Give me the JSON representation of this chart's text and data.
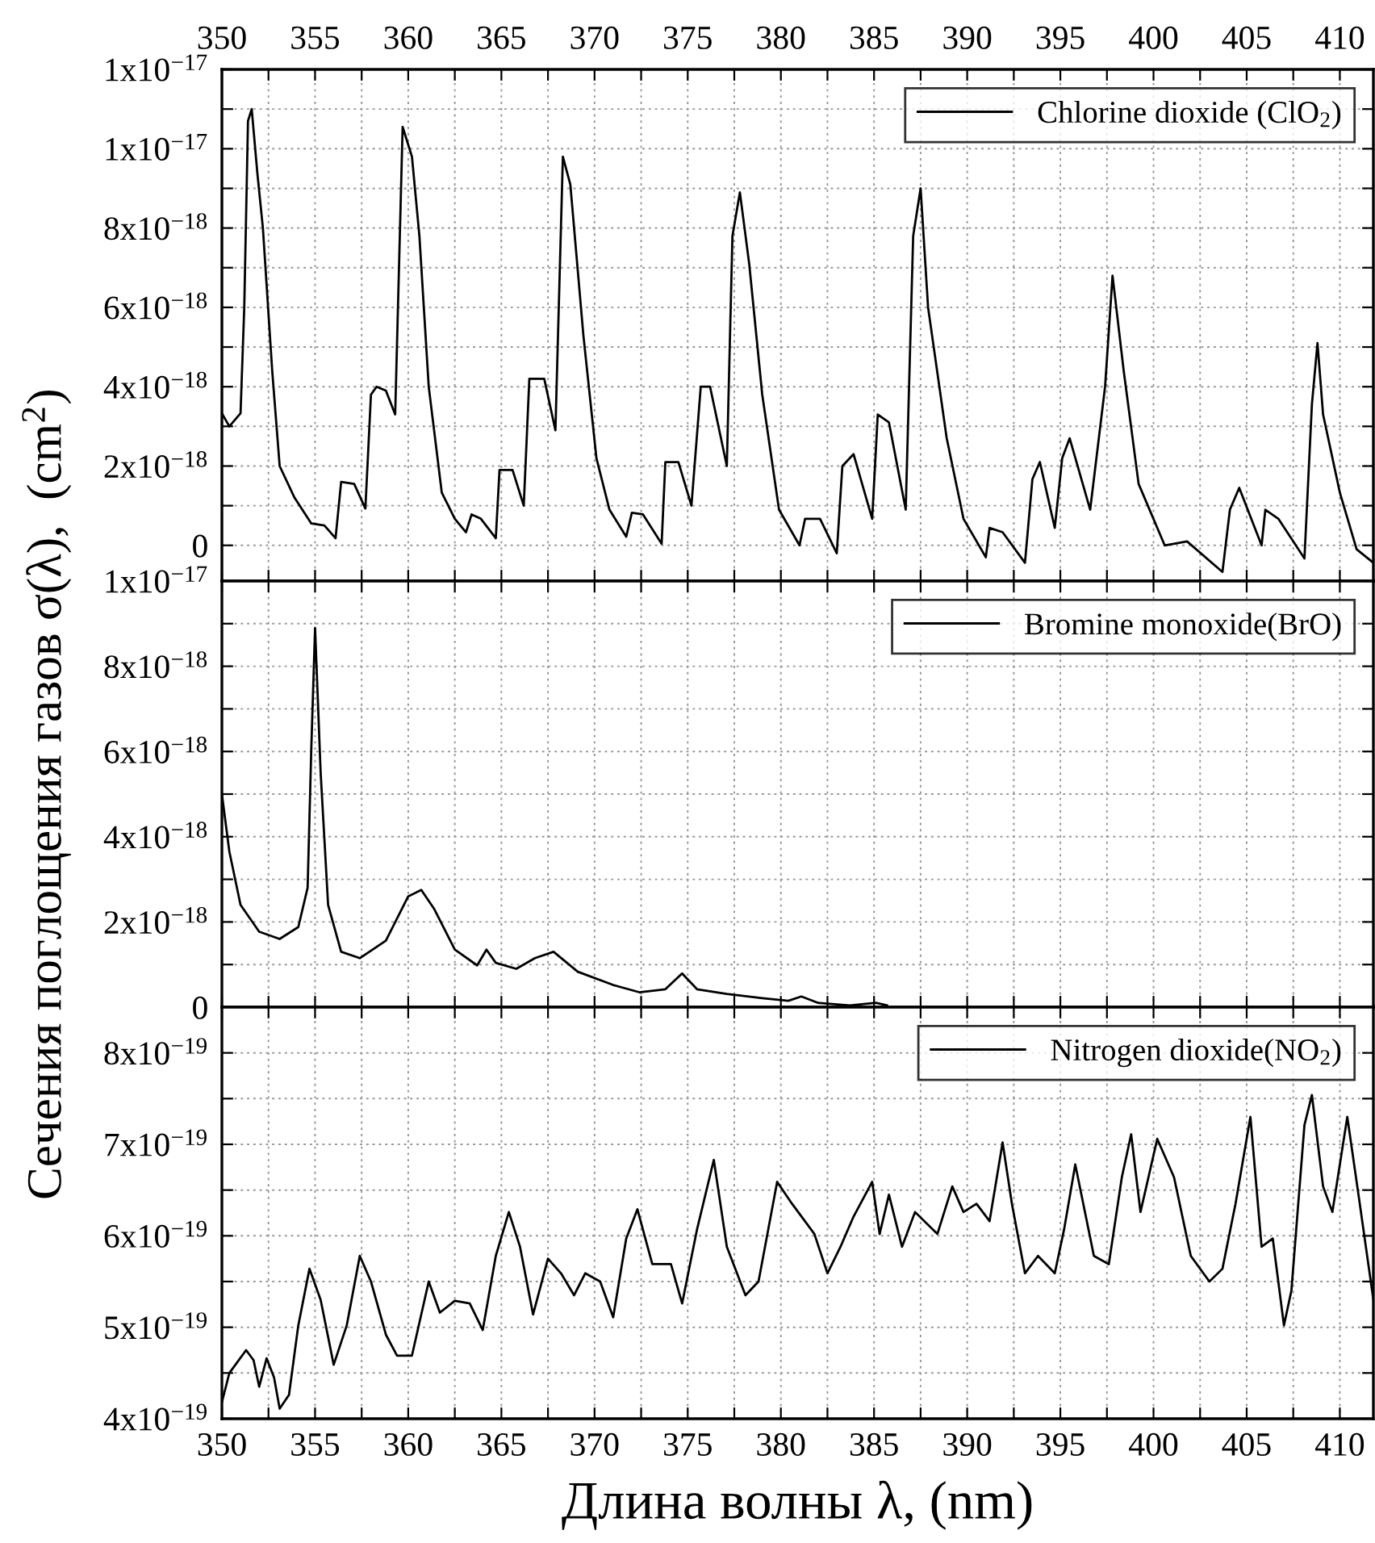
{
  "chart_data": [
    {
      "type": "line",
      "tick_labels": "y",
      "grid": true,
      "legend": "top right",
      "line_style": "solid",
      "marker": "none",
      "xlim": [
        350,
        411.8
      ],
      "x2lim": [
        350,
        411.8
      ],
      "xticks": [
        350,
        {
          "value": 352.5,
          "label": null
        },
        355,
        {
          "value": 357.5,
          "label": null
        },
        360,
        {
          "value": 362.5,
          "label": null
        },
        365,
        {
          "value": 367.5,
          "label": null
        },
        370,
        {
          "value": 372.5,
          "label": null
        },
        375,
        {
          "value": 377.5,
          "label": null
        },
        380,
        {
          "value": 382.5,
          "label": null
        },
        385,
        {
          "value": 387.5,
          "label": null
        },
        390,
        {
          "value": 392.5,
          "label": null
        },
        395,
        {
          "value": 397.5,
          "label": null
        },
        400,
        {
          "value": 402.5,
          "label": null
        },
        405,
        {
          "value": 407.5,
          "label": null
        },
        410
      ],
      "x2ticks": [
        350,
        {
          "value": 352.5,
          "label": null
        },
        355,
        {
          "value": 357.5,
          "label": null
        },
        360,
        {
          "value": 362.5,
          "label": null
        },
        365,
        {
          "value": 367.5,
          "label": null
        },
        370,
        {
          "value": 372.5,
          "label": null
        },
        375,
        {
          "value": 377.5,
          "label": null
        },
        380,
        {
          "value": 382.5,
          "label": null
        },
        385,
        {
          "value": 387.5,
          "label": null
        },
        390,
        {
          "value": 392.5,
          "label": null
        },
        395,
        {
          "value": 397.5,
          "label": null
        },
        400,
        {
          "value": 402.5,
          "label": null
        },
        405,
        {
          "value": 407.5,
          "label": null
        },
        410
      ],
      "ylim": [
        -9e-19,
        1.2e-17
      ],
      "yticks": [
        {
          "value": 0,
          "label": "0"
        },
        {
          "value": 1e-18,
          "label": null
        },
        {
          "value": 2e-18,
          "label": "2x10$^{−18}$"
        },
        {
          "value": 3e-18,
          "label": null
        },
        {
          "value": 4e-18,
          "label": "4x10$^{−18}$"
        },
        {
          "value": 5e-18,
          "label": null
        },
        {
          "value": 6e-18,
          "label": "6x10$^{−18}$"
        },
        {
          "value": 7e-18,
          "label": null
        },
        {
          "value": 8e-18,
          "label": "8x10$^{−18}$"
        },
        {
          "value": 9e-18,
          "label": null
        },
        {
          "value": 1e-17,
          "label": "1x10$^{−17}$"
        },
        {
          "value": 1.1e-17,
          "label": null
        },
        {
          "value": 1.2e-17,
          "label": "1x10$^{−17}$"
        }
      ],
      "series": [
        {
          "name": "Chlorine dioxide (ClO$_{2}$)",
          "color": "#000000",
          "x": [
            350,
            350.4,
            351.0,
            351.2,
            351.4,
            351.6,
            351.9,
            352.2,
            352.7,
            353.1,
            353.9,
            354.8,
            355.5,
            356.1,
            356.4,
            357.1,
            357.7,
            358.0,
            358.3,
            358.8,
            359.3,
            359.7,
            360.2,
            360.6,
            361.1,
            361.8,
            362.5,
            363.1,
            363.4,
            363.9,
            364.7,
            364.9,
            365.6,
            366.2,
            366.5,
            367.3,
            367.9,
            368.3,
            368.7,
            369.4,
            370.1,
            370.8,
            371.7,
            372.0,
            372.6,
            373.6,
            373.8,
            374.5,
            375.2,
            375.7,
            376.2,
            377.1,
            377.4,
            377.8,
            378.3,
            379.0,
            379.9,
            381.0,
            381.3,
            382.1,
            383.0,
            383.3,
            383.9,
            384.9,
            385.2,
            385.8,
            386.7,
            387.1,
            387.5,
            387.9,
            388.9,
            389.8,
            391.0,
            391.2,
            391.9,
            393.1,
            393.5,
            393.9,
            394.7,
            395.1,
            395.5,
            396.6,
            397.4,
            397.8,
            398.4,
            399.2,
            400.6,
            401.8,
            403.7,
            404.1,
            404.6,
            405.8,
            406.0,
            406.7,
            408.1,
            408.5,
            408.8,
            409.1,
            410.0,
            410.9,
            411.8
          ],
          "values": [
            3.33e-18,
            3e-18,
            3.33e-18,
            6e-18,
            1.07e-17,
            1.1e-17,
            9.4e-18,
            8e-18,
            4.4e-18,
            2e-18,
            1.2e-18,
            5.5e-19,
            5e-19,
            1.8e-19,
            1.6e-18,
            1.55e-18,
            9.3e-19,
            3.8e-18,
            4e-18,
            3.9e-18,
            3.3e-18,
            1.055e-17,
            9.8e-18,
            7.8e-18,
            4e-18,
            1.33e-18,
            6.7e-19,
            3.3e-19,
            7.8e-19,
            6.7e-19,
            1.8e-19,
            1.9e-18,
            1.9e-18,
            1e-18,
            4.2e-18,
            4.2e-18,
            2.9e-18,
            9.8e-18,
            9.1e-18,
            5.3e-18,
            2.2e-18,
            9e-19,
            2.2e-19,
            8.2e-19,
            7.8e-19,
            4e-20,
            2.1e-18,
            2.1e-18,
            1e-18,
            4e-18,
            4e-18,
            2e-18,
            7.8e-18,
            8.9e-18,
            7.1e-18,
            3.8e-18,
            9e-19,
            0,
            6.7e-19,
            6.7e-19,
            -2e-19,
            2e-18,
            2.3e-18,
            6.7e-19,
            3.3e-18,
            3.1e-18,
            9e-19,
            7.8e-18,
            9e-18,
            6e-18,
            2.7e-18,
            6.7e-19,
            -3e-19,
            4.4e-19,
            3.3e-19,
            -4.4e-19,
            1.67e-18,
            2.1e-18,
            4.4e-19,
            2.2e-18,
            2.7e-18,
            9e-19,
            4e-18,
            6.8e-18,
            4.4e-18,
            1.55e-18,
            0,
            1e-19,
            -6.7e-19,
            9e-19,
            1.45e-18,
            0,
            9e-19,
            6.7e-19,
            -3.3e-19,
            3.55e-18,
            5.1e-18,
            3.3e-18,
            1.33e-18,
            -1e-19,
            -4.4e-19
          ]
        }
      ]
    },
    {
      "type": "line",
      "tick_labels": "y",
      "grid": true,
      "legend": "top right",
      "line_style": "solid",
      "marker": "none",
      "ylabel": "Сечения поглощения газов σ(λ),  (cm$^{2}$)",
      "xlim": [
        350,
        411.8
      ],
      "xticks": [
        350,
        {
          "value": 352.5,
          "label": null
        },
        355,
        {
          "value": 357.5,
          "label": null
        },
        360,
        {
          "value": 362.5,
          "label": null
        },
        365,
        {
          "value": 367.5,
          "label": null
        },
        370,
        {
          "value": 372.5,
          "label": null
        },
        375,
        {
          "value": 377.5,
          "label": null
        },
        380,
        {
          "value": 382.5,
          "label": null
        },
        385,
        {
          "value": 387.5,
          "label": null
        },
        390,
        {
          "value": 392.5,
          "label": null
        },
        395,
        {
          "value": 397.5,
          "label": null
        },
        400,
        {
          "value": 402.5,
          "label": null
        },
        405,
        {
          "value": 407.5,
          "label": null
        },
        410
      ],
      "ylim": [
        0,
        1e-17
      ],
      "yticks": [
        {
          "value": 0,
          "label": "0"
        },
        {
          "value": 1e-18,
          "label": null
        },
        {
          "value": 2e-18,
          "label": "2x10$^{−18}$"
        },
        {
          "value": 3e-18,
          "label": null
        },
        {
          "value": 4e-18,
          "label": "4x10$^{−18}$"
        },
        {
          "value": 5e-18,
          "label": null
        },
        {
          "value": 6e-18,
          "label": "6x10$^{−18}$"
        },
        {
          "value": 7e-18,
          "label": null
        },
        {
          "value": 8e-18,
          "label": "8x10$^{−18}$"
        },
        {
          "value": 9e-18,
          "label": null
        },
        {
          "value": 1e-17,
          "label": "1x10$^{−17}$"
        }
      ],
      "series": [
        {
          "name": "Bromine monoxide(BrO)",
          "color": "#000000",
          "x": [
            350,
            350.4,
            351.0,
            352.0,
            353.1,
            354.1,
            354.6,
            354.8,
            355.0,
            355.3,
            355.7,
            356.4,
            357.4,
            358.8,
            360.0,
            360.7,
            361.4,
            362.5,
            363.7,
            364.2,
            364.7,
            365.8,
            366.8,
            367.8,
            369.1,
            371.0,
            372.4,
            373.8,
            374.7,
            375.5,
            377.1,
            379.0,
            380.4,
            381.1,
            382.0,
            383.7,
            385.1,
            385.7
          ],
          "values": [
            5e-18,
            3.65e-18,
            2.4e-18,
            1.77e-18,
            1.6e-18,
            1.88e-18,
            2.8e-18,
            6.1e-18,
            8.9e-18,
            5.5e-18,
            2.4e-18,
            1.3e-18,
            1.15e-18,
            1.56e-18,
            2.6e-18,
            2.75e-18,
            2.3e-18,
            1.35e-18,
            9.8e-19,
            1.35e-18,
            1.04e-18,
            9e-19,
            1.15e-18,
            1.3e-18,
            8.3e-19,
            5.2e-19,
            3.5e-19,
            4.2e-19,
            7.9e-19,
            4.2e-19,
            3.1e-19,
            2.1e-19,
            1.5e-19,
            2.5e-19,
            1e-19,
            4e-20,
            1e-19,
            4e-20
          ]
        }
      ]
    },
    {
      "type": "line",
      "grid": true,
      "legend": "top right",
      "line_style": "solid",
      "marker": "none",
      "xlabel": "Длина волны λ, (nm)",
      "xlim": [
        350,
        411.8
      ],
      "xticks": [
        350,
        {
          "value": 352.5,
          "label": null
        },
        355,
        {
          "value": 357.5,
          "label": null
        },
        360,
        {
          "value": 362.5,
          "label": null
        },
        365,
        {
          "value": 367.5,
          "label": null
        },
        370,
        {
          "value": 372.5,
          "label": null
        },
        375,
        {
          "value": 377.5,
          "label": null
        },
        380,
        {
          "value": 382.5,
          "label": null
        },
        385,
        {
          "value": 387.5,
          "label": null
        },
        390,
        {
          "value": 392.5,
          "label": null
        },
        395,
        {
          "value": 397.5,
          "label": null
        },
        400,
        {
          "value": 402.5,
          "label": null
        },
        405,
        {
          "value": 407.5,
          "label": null
        },
        410
      ],
      "ylim": [
        4e-19,
        8.5e-19
      ],
      "yticks": [
        {
          "value": 4e-19,
          "label": "4x10$^{−19}$"
        },
        {
          "value": 4.5e-19,
          "label": null
        },
        {
          "value": 5e-19,
          "label": "5x10$^{−19}$"
        },
        {
          "value": 5.5e-19,
          "label": null
        },
        {
          "value": 6e-19,
          "label": "6x10$^{−19}$"
        },
        {
          "value": 6.5e-19,
          "label": null
        },
        {
          "value": 7e-19,
          "label": "7x10$^{−19}$"
        },
        {
          "value": 7.5e-19,
          "label": null
        },
        {
          "value": 8e-19,
          "label": "8x10$^{−19}$"
        }
      ],
      "series": [
        {
          "name": "Nitrogen dioxide(NO$_{2}$)",
          "color": "#000000",
          "x": [
            350,
            350.4,
            351.3,
            351.7,
            352.0,
            352.4,
            352.8,
            353.1,
            353.6,
            354.1,
            354.7,
            355.3,
            356.0,
            356.7,
            357.4,
            358.0,
            358.8,
            359.4,
            360.2,
            361.1,
            361.7,
            362.5,
            363.3,
            364.0,
            364.7,
            365.4,
            366.0,
            366.7,
            367.5,
            368.2,
            368.9,
            369.5,
            370.3,
            371.0,
            371.7,
            372.3,
            373.1,
            374.1,
            374.7,
            375.5,
            376.4,
            377.1,
            378.1,
            378.8,
            379.8,
            380.6,
            381.8,
            382.5,
            383.2,
            383.9,
            384.9,
            385.3,
            385.8,
            386.5,
            387.2,
            388.4,
            389.2,
            389.8,
            390.5,
            391.2,
            391.9,
            392.4,
            393.1,
            393.8,
            394.7,
            395.2,
            395.8,
            396.8,
            397.6,
            398.3,
            398.8,
            399.3,
            400.2,
            401.1,
            402.0,
            403.0,
            403.7,
            404.4,
            405.2,
            405.8,
            406.4,
            407.0,
            407.4,
            408.1,
            408.5,
            409.1,
            409.6,
            410.4,
            411.0,
            411.8
          ],
          "values": [
            4.18e-19,
            4.5e-19,
            4.75e-19,
            4.64e-19,
            4.35e-19,
            4.66e-19,
            4.45e-19,
            4.11e-19,
            4.26e-19,
            5.02e-19,
            5.64e-19,
            5.3e-19,
            4.59e-19,
            5.02e-19,
            5.78e-19,
            5.5e-19,
            4.92e-19,
            4.69e-19,
            4.69e-19,
            5.5e-19,
            5.16e-19,
            5.29e-19,
            5.26e-19,
            4.97e-19,
            5.78e-19,
            6.26e-19,
            5.88e-19,
            5.14e-19,
            5.75e-19,
            5.59e-19,
            5.35e-19,
            5.59e-19,
            5.5e-19,
            5.11e-19,
            5.97e-19,
            6.29e-19,
            5.69e-19,
            5.69e-19,
            5.26e-19,
            6.07e-19,
            6.83e-19,
            5.88e-19,
            5.35e-19,
            5.5e-19,
            6.59e-19,
            6.35e-19,
            6.02e-19,
            5.59e-19,
            5.88e-19,
            6.21e-19,
            6.59e-19,
            6.02e-19,
            6.45e-19,
            5.88e-19,
            6.26e-19,
            6.02e-19,
            6.54e-19,
            6.26e-19,
            6.35e-19,
            6.16e-19,
            7.02e-19,
            6.35e-19,
            5.59e-19,
            5.78e-19,
            5.59e-19,
            6.07e-19,
            6.78e-19,
            5.78e-19,
            5.69e-19,
            6.64e-19,
            7.11e-19,
            6.26e-19,
            7.06e-19,
            6.64e-19,
            5.78e-19,
            5.5e-19,
            5.64e-19,
            6.35e-19,
            7.3e-19,
            5.88e-19,
            5.97e-19,
            5.02e-19,
            5.4e-19,
            7.21e-19,
            7.54e-19,
            6.54e-19,
            6.26e-19,
            7.3e-19,
            6.45e-19,
            5.3e-19
          ]
        }
      ]
    }
  ]
}
